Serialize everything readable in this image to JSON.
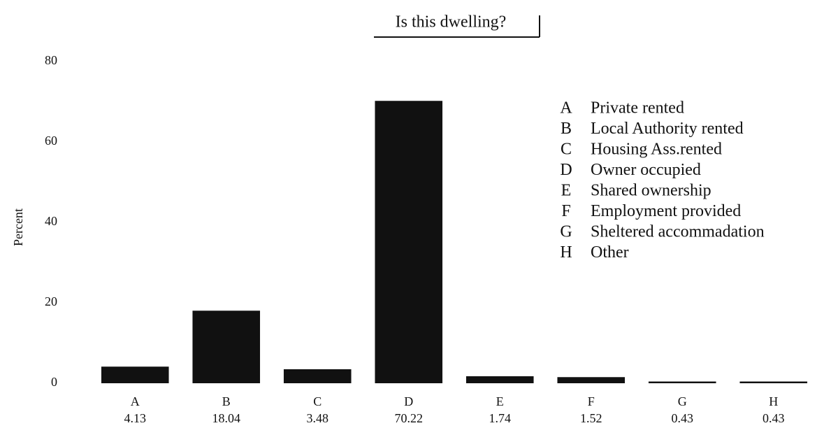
{
  "chart_data": {
    "type": "bar",
    "title": "Is this dwelling?",
    "y_label": "Percent",
    "categories": [
      "A",
      "B",
      "C",
      "D",
      "E",
      "F",
      "G",
      "H"
    ],
    "values": [
      4.13,
      18.04,
      3.48,
      70.22,
      1.74,
      1.52,
      0.43,
      0.43
    ],
    "color": "#111111",
    "legend_labels": [
      "Private rented",
      "Local Authority rented",
      "Housing Ass.rented",
      "Owner occupied",
      "Shared ownership",
      "Employment provided",
      "Sheltered accommadation",
      "Other"
    ],
    "ylim": [
      0,
      80
    ],
    "yticks": [
      0,
      20,
      40,
      60,
      80
    ],
    "grid": false
  }
}
